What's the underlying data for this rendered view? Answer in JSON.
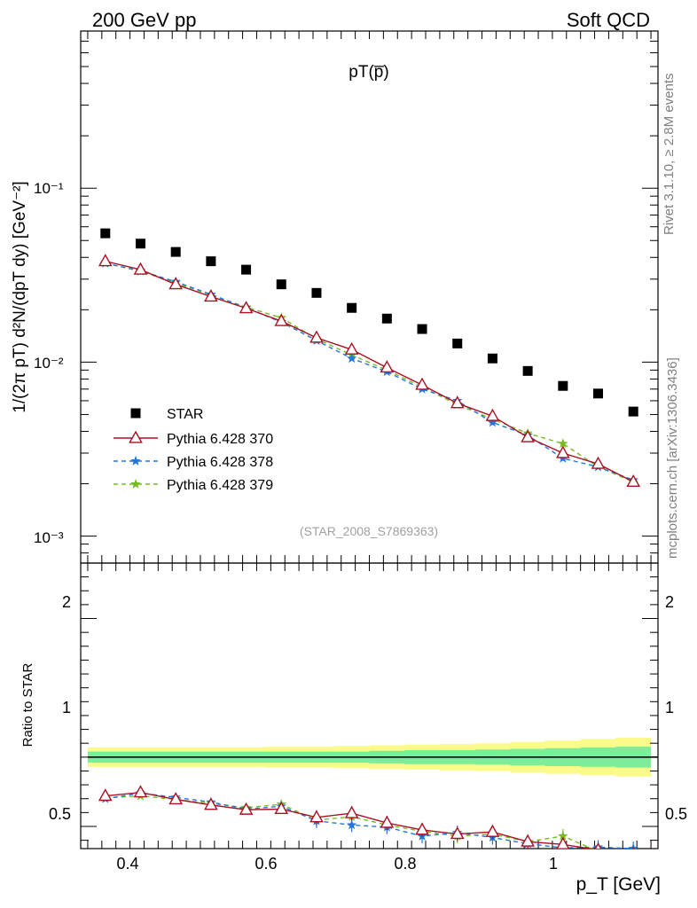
{
  "header": {
    "left": "200 GeV pp",
    "right": "Soft QCD"
  },
  "side_labels": {
    "rivet": "Rivet 3.1.10, ≥ 2.8M events",
    "mcplots": "mcplots.cern.ch [arXiv:1306.3436]"
  },
  "chart_data": [
    {
      "type": "scatter",
      "title": "pT(p̅)",
      "watermark": "(STAR_2008_S7869363)",
      "ylabel": "1/(2π pT) d²N/(dpT dy) [GeV⁻²]",
      "yscale": "log",
      "ylim": [
        0.0007,
        0.8
      ],
      "xlim": [
        0.34,
        1.16
      ],
      "y_ticks": [
        "10⁻³",
        "10⁻²",
        "10⁻¹"
      ],
      "x": [
        0.375,
        0.425,
        0.475,
        0.525,
        0.575,
        0.625,
        0.675,
        0.725,
        0.775,
        0.825,
        0.875,
        0.925,
        0.975,
        1.025,
        1.075,
        1.125
      ],
      "series": [
        {
          "name": "STAR",
          "color": "#000000",
          "marker": "square",
          "values": [
            0.055,
            0.048,
            0.043,
            0.038,
            0.034,
            0.028,
            0.025,
            0.0205,
            0.0178,
            0.0155,
            0.0128,
            0.0105,
            0.0089,
            0.0073,
            0.0066,
            0.0052
          ]
        },
        {
          "name": "Pythia 6.428 370",
          "color": "#aa1122",
          "marker": "triangle",
          "line": "solid",
          "values": [
            0.038,
            0.034,
            0.028,
            0.0238,
            0.0204,
            0.0172,
            0.0138,
            0.0118,
            0.0093,
            0.0074,
            0.0058,
            0.0049,
            0.0037,
            0.003,
            0.0026,
            0.00205
          ]
        },
        {
          "name": "Pythia 6.428 378",
          "color": "#2277dd",
          "marker": "star",
          "line": "dashed",
          "values": [
            0.037,
            0.0335,
            0.029,
            0.0245,
            0.0205,
            0.017,
            0.0133,
            0.0105,
            0.0088,
            0.007,
            0.006,
            0.0045,
            0.0038,
            0.0028,
            0.0025,
            0.0021
          ]
        },
        {
          "name": "Pythia 6.428 379",
          "color": "#77bb22",
          "marker": "star",
          "line": "dashed",
          "values": [
            0.037,
            0.0333,
            0.0285,
            0.0243,
            0.0207,
            0.018,
            0.0136,
            0.011,
            0.009,
            0.0072,
            0.0057,
            0.0047,
            0.0039,
            0.0034,
            0.0025,
            0.00205
          ]
        }
      ]
    },
    {
      "type": "scatter",
      "ylabel": "Ratio to STAR",
      "xlabel": "p_T [GeV]",
      "xlim": [
        0.34,
        1.16
      ],
      "ylim": [
        0.34,
        2.4
      ],
      "x_ticks": [
        "0.4",
        "0.6",
        "0.8",
        "1"
      ],
      "y_ticks": [
        "0.5",
        "1",
        "2"
      ],
      "reference": 1,
      "x": [
        0.375,
        0.425,
        0.475,
        0.525,
        0.575,
        0.625,
        0.675,
        0.725,
        0.775,
        0.825,
        0.875,
        0.925,
        0.975,
        1.025,
        1.075,
        1.125
      ],
      "band_inner": [
        0.04,
        0.04,
        0.04,
        0.04,
        0.04,
        0.04,
        0.04,
        0.04,
        0.045,
        0.05,
        0.05,
        0.055,
        0.06,
        0.065,
        0.07,
        0.075
      ],
      "band_outer": [
        0.07,
        0.07,
        0.07,
        0.07,
        0.07,
        0.075,
        0.075,
        0.08,
        0.085,
        0.09,
        0.095,
        0.1,
        0.11,
        0.12,
        0.13,
        0.14
      ],
      "series": [
        {
          "name": "Pythia 6.428 370",
          "color": "#aa1122",
          "values": [
            0.72,
            0.745,
            0.695,
            0.655,
            0.62,
            0.625,
            0.565,
            0.595,
            0.525,
            0.475,
            0.445,
            0.46,
            0.39,
            0.37,
            0.33,
            0.3
          ]
        },
        {
          "name": "Pythia 6.428 378",
          "color": "#2277dd",
          "values": [
            0.7,
            0.74,
            0.71,
            0.675,
            0.625,
            0.645,
            0.54,
            0.51,
            0.495,
            0.43,
            0.455,
            0.42,
            0.375,
            0.345,
            0.35,
            0.34
          ]
        },
        {
          "name": "Pythia 6.428 379",
          "color": "#77bb22",
          "values": [
            0.705,
            0.72,
            0.695,
            0.665,
            0.635,
            0.66,
            0.545,
            0.57,
            0.51,
            0.465,
            0.43,
            0.445,
            0.39,
            0.43,
            0.32,
            0.3
          ]
        }
      ]
    }
  ]
}
